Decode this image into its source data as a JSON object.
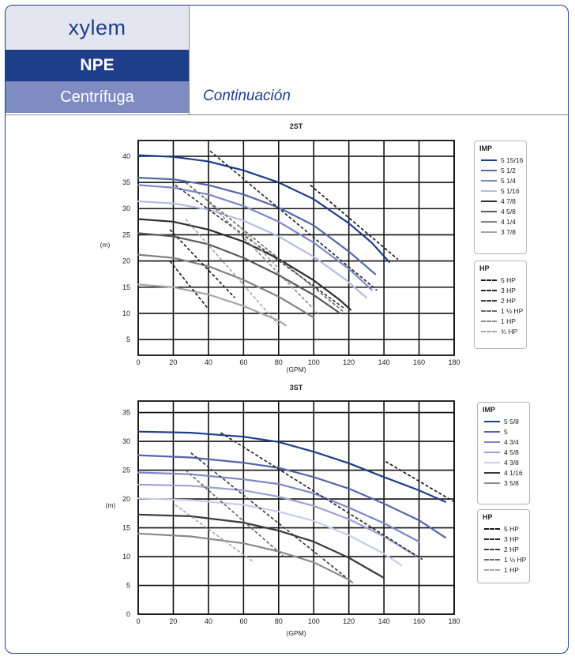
{
  "header": {
    "brand": "xylem",
    "model": "NPE",
    "type": "Centrífuga",
    "continuation": "Continuación"
  },
  "chart_data": [
    {
      "type": "line",
      "title": "2ST",
      "xlabel": "(GPM)",
      "ylabel": "(m)",
      "xlim": [
        0,
        180
      ],
      "ylim": [
        2,
        43
      ],
      "x_ticks": [
        0,
        20,
        40,
        60,
        80,
        100,
        120,
        140,
        160,
        180
      ],
      "y_ticks": [
        5,
        10,
        15,
        20,
        25,
        30,
        35,
        40
      ],
      "grid": true,
      "legend_position": "right",
      "impeller_legend_title": "IMP",
      "hp_legend_title": "HP",
      "series": [
        {
          "name": "5 15/16",
          "color": "#1f3e8a",
          "width": 2.2,
          "points": [
            [
              0,
              40.2
            ],
            [
              20,
              39.9
            ],
            [
              40,
              39.0
            ],
            [
              60,
              37.3
            ],
            [
              80,
              35.0
            ],
            [
              100,
              31.8
            ],
            [
              120,
              27.2
            ],
            [
              133,
              23.5
            ],
            [
              143,
              19.8
            ]
          ]
        },
        {
          "name": "5 1/2",
          "color": "#5566a8",
          "width": 2.2,
          "points": [
            [
              0,
              35.9
            ],
            [
              20,
              35.6
            ],
            [
              40,
              34.5
            ],
            [
              60,
              32.7
            ],
            [
              80,
              30.2
            ],
            [
              100,
              26.8
            ],
            [
              120,
              21.8
            ],
            [
              135,
              17.5
            ]
          ]
        },
        {
          "name": "5 1/4",
          "color": "#7d88c3",
          "width": 2.2,
          "points": [
            [
              0,
              34.5
            ],
            [
              20,
              34.0
            ],
            [
              40,
              32.7
            ],
            [
              60,
              30.5
            ],
            [
              80,
              27.5
            ],
            [
              100,
              23.5
            ],
            [
              120,
              18.5
            ],
            [
              133,
              14.5
            ]
          ]
        },
        {
          "name": "5 1/16",
          "color": "#b6bde0",
          "width": 2.2,
          "points": [
            [
              0,
              31.4
            ],
            [
              20,
              31.0
            ],
            [
              40,
              29.8
            ],
            [
              60,
              27.7
            ],
            [
              80,
              24.7
            ],
            [
              100,
              20.8
            ],
            [
              118,
              16.5
            ],
            [
              130,
              13.0
            ]
          ]
        },
        {
          "name": "4 7/8",
          "color": "#2e2e2e",
          "width": 2.2,
          "points": [
            [
              0,
              28.0
            ],
            [
              20,
              27.5
            ],
            [
              40,
              26.0
            ],
            [
              60,
              23.7
            ],
            [
              80,
              20.4
            ],
            [
              100,
              16.3
            ],
            [
              115,
              12.5
            ],
            [
              121,
              10.7
            ]
          ]
        },
        {
          "name": "4 5/8",
          "color": "#5a5a5a",
          "width": 2.2,
          "points": [
            [
              0,
              25.3
            ],
            [
              20,
              24.7
            ],
            [
              40,
              23.2
            ],
            [
              60,
              20.6
            ],
            [
              80,
              17.3
            ],
            [
              100,
              13.5
            ],
            [
              115,
              10.0
            ]
          ]
        },
        {
          "name": "4 1/4",
          "color": "#828282",
          "width": 2.2,
          "points": [
            [
              0,
              21.2
            ],
            [
              20,
              20.6
            ],
            [
              40,
              19.0
            ],
            [
              60,
              16.4
            ],
            [
              80,
              13.2
            ],
            [
              95,
              10.2
            ],
            [
              100,
              9.2
            ]
          ]
        },
        {
          "name": "3 7/8",
          "color": "#a6a6a6",
          "width": 2.2,
          "points": [
            [
              0,
              15.5
            ],
            [
              20,
              15.0
            ],
            [
              40,
              13.6
            ],
            [
              60,
              11.4
            ],
            [
              80,
              8.6
            ],
            [
              84,
              7.7
            ]
          ]
        }
      ],
      "hp_curves": [
        {
          "name": "5 HP",
          "color": "#1a1a1a",
          "points": [
            [
              98,
              34.5
            ],
            [
              148,
              20.3
            ]
          ]
        },
        {
          "name": "3 HP",
          "color": "#2a2a2a",
          "points": [
            [
              41,
              41.0
            ],
            [
              136,
              14.4
            ]
          ]
        },
        {
          "name": "2 HP",
          "color": "#3e3e3e",
          "points": [
            [
              21,
              34.5
            ],
            [
              118,
              10.8
            ]
          ]
        },
        {
          "name": "1 1/2 HP",
          "color": "#6a6a6a",
          "points": [
            [
              27,
              35.0
            ],
            [
              117,
              10.3
            ]
          ]
        },
        {
          "name": "1 HP",
          "color": "#8a8a8a",
          "points": [
            [
              38,
              32.0
            ],
            [
              103,
              9.8
            ]
          ]
        },
        {
          "name": "3/4 HP",
          "color": "#a8a8a8",
          "points": [
            [
              27,
              28.0
            ],
            [
              80,
              7.8
            ]
          ]
        },
        {
          "name": "",
          "color": "#a8a8a8",
          "points": [
            [
              58,
              26.5
            ],
            [
              80,
              18.5
            ]
          ]
        }
      ],
      "extra_dashed": [
        {
          "color": "#222222",
          "points": [
            [
              18,
              26.0
            ],
            [
              55,
              13.0
            ]
          ]
        },
        {
          "color": "#222222",
          "points": [
            [
              18,
              20.0
            ],
            [
              40,
              10.8
            ]
          ]
        }
      ],
      "impeller_legend": [
        "5 15/16",
        "5 1/2",
        "5 1/4",
        "5 1/16",
        "4 7/8",
        "4 5/8",
        "4 1/4",
        "3 7/8"
      ],
      "hp_legend": [
        "5 HP",
        "3 HP",
        "2 HP",
        "1 ½ HP",
        "1 HP",
        "¾ HP"
      ]
    },
    {
      "type": "line",
      "title": "3ST",
      "xlabel": "(GPM)",
      "ylabel": "(m)",
      "xlim": [
        0,
        180
      ],
      "ylim": [
        0,
        37
      ],
      "x_ticks": [
        0,
        20,
        40,
        60,
        80,
        100,
        120,
        140,
        160,
        180
      ],
      "y_ticks": [
        0,
        5,
        10,
        15,
        20,
        25,
        30,
        35
      ],
      "grid": true,
      "legend_position": "right",
      "impeller_legend_title": "IMP",
      "hp_legend_title": "HP",
      "series": [
        {
          "name": "5 5/8",
          "color": "#1f3e8a",
          "width": 2.2,
          "points": [
            [
              0,
              31.7
            ],
            [
              30,
              31.5
            ],
            [
              60,
              30.8
            ],
            [
              80,
              29.9
            ],
            [
              100,
              28.2
            ],
            [
              120,
              26.2
            ],
            [
              140,
              23.8
            ],
            [
              160,
              21.5
            ],
            [
              175,
              19.5
            ]
          ]
        },
        {
          "name": "5",
          "color": "#5566a8",
          "width": 2.2,
          "points": [
            [
              0,
              27.6
            ],
            [
              30,
              27.2
            ],
            [
              60,
              26.3
            ],
            [
              80,
              25.4
            ],
            [
              100,
              23.8
            ],
            [
              120,
              21.8
            ],
            [
              140,
              19.2
            ],
            [
              160,
              16.3
            ],
            [
              175,
              13.3
            ]
          ]
        },
        {
          "name": "4 3/4",
          "color": "#7d88c3",
          "width": 2.2,
          "points": [
            [
              0,
              24.6
            ],
            [
              30,
              24.3
            ],
            [
              60,
              23.4
            ],
            [
              80,
              22.6
            ],
            [
              100,
              21.0
            ],
            [
              120,
              18.5
            ],
            [
              140,
              15.8
            ],
            [
              160,
              12.6
            ]
          ]
        },
        {
          "name": "4 5/8",
          "color": "#9aa3d3",
          "width": 2.2,
          "points": [
            [
              0,
              22.5
            ],
            [
              30,
              22.3
            ],
            [
              60,
              21.5
            ],
            [
              80,
              20.4
            ],
            [
              100,
              18.8
            ],
            [
              120,
              16.5
            ],
            [
              140,
              13.5
            ],
            [
              160,
              9.8
            ]
          ]
        },
        {
          "name": "4 3/8",
          "color": "#c8cde8",
          "width": 2.2,
          "points": [
            [
              0,
              20.1
            ],
            [
              30,
              19.8
            ],
            [
              60,
              19.0
            ],
            [
              80,
              17.8
            ],
            [
              100,
              16.2
            ],
            [
              120,
              13.7
            ],
            [
              140,
              10.5
            ],
            [
              150,
              8.5
            ]
          ]
        },
        {
          "name": "4 1/16",
          "color": "#3a3a3a",
          "width": 2.2,
          "points": [
            [
              0,
              17.3
            ],
            [
              30,
              17.0
            ],
            [
              60,
              15.9
            ],
            [
              80,
              14.5
            ],
            [
              100,
              12.6
            ],
            [
              120,
              9.8
            ],
            [
              140,
              6.3
            ]
          ]
        },
        {
          "name": "3 5/8",
          "color": "#8a8a8a",
          "width": 2.2,
          "points": [
            [
              0,
              14.0
            ],
            [
              30,
              13.5
            ],
            [
              60,
              12.3
            ],
            [
              80,
              10.9
            ],
            [
              100,
              9.0
            ],
            [
              120,
              6.0
            ],
            [
              122,
              5.5
            ]
          ]
        }
      ],
      "hp_curves": [
        {
          "name": "5 HP",
          "color": "#1a1a1a",
          "points": [
            [
              141,
              26.5
            ],
            [
              180,
              19.5
            ]
          ]
        },
        {
          "name": "3 HP",
          "color": "#2a2a2a",
          "points": [
            [
              47,
              31.5
            ],
            [
              162,
              9.5
            ]
          ]
        },
        {
          "name": "2 HP",
          "color": "#3e3e3e",
          "points": [
            [
              30,
              28.0
            ],
            [
              118,
              6.5
            ]
          ]
        },
        {
          "name": "1 1/2 HP",
          "color": "#6a6a6a",
          "points": [
            [
              27,
              25.0
            ],
            [
              83,
              10.0
            ]
          ]
        },
        {
          "name": "1 HP",
          "color": "#a8a8a8",
          "points": [
            [
              21,
              19.0
            ],
            [
              66,
              9.0
            ]
          ]
        }
      ],
      "extra_dashed": [],
      "impeller_legend": [
        "5 5/8",
        "5",
        "4 3/4",
        "4 5/8",
        "4 3/8",
        "4 1/16",
        "3 5/8"
      ],
      "hp_legend": [
        "5 HP",
        "3 HP",
        "2 HP",
        "1 ½ HP",
        "1 HP"
      ]
    }
  ]
}
